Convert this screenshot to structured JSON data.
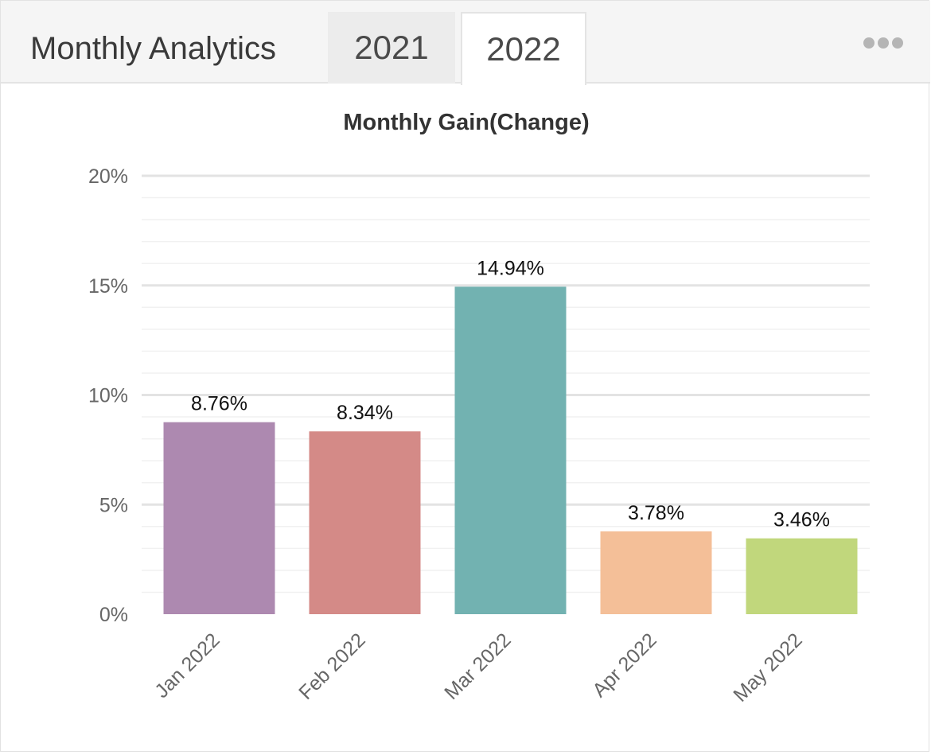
{
  "header": {
    "title": "Monthly Analytics",
    "tabs": [
      {
        "label": "2021",
        "active": false
      },
      {
        "label": "2022",
        "active": true
      }
    ],
    "menu_icon": "more-horizontal-icon"
  },
  "chart_data": {
    "type": "bar",
    "title": "Monthly Gain(Change)",
    "xlabel": "",
    "ylabel": "",
    "categories": [
      "Jan 2022",
      "Feb 2022",
      "Mar 2022",
      "Apr 2022",
      "May 2022"
    ],
    "values": [
      8.76,
      8.34,
      14.94,
      3.78,
      3.46
    ],
    "data_labels": [
      "8.76%",
      "8.34%",
      "14.94%",
      "3.78%",
      "3.46%"
    ],
    "colors": [
      "#ad89b0",
      "#d48a87",
      "#72b2b1",
      "#f4bf98",
      "#c1d77c"
    ],
    "ylim": [
      0,
      20
    ],
    "yticks": [
      0,
      5,
      10,
      15,
      20
    ],
    "ytick_labels": [
      "0%",
      "5%",
      "10%",
      "15%",
      "20%"
    ],
    "grid": true,
    "legend": "none"
  }
}
